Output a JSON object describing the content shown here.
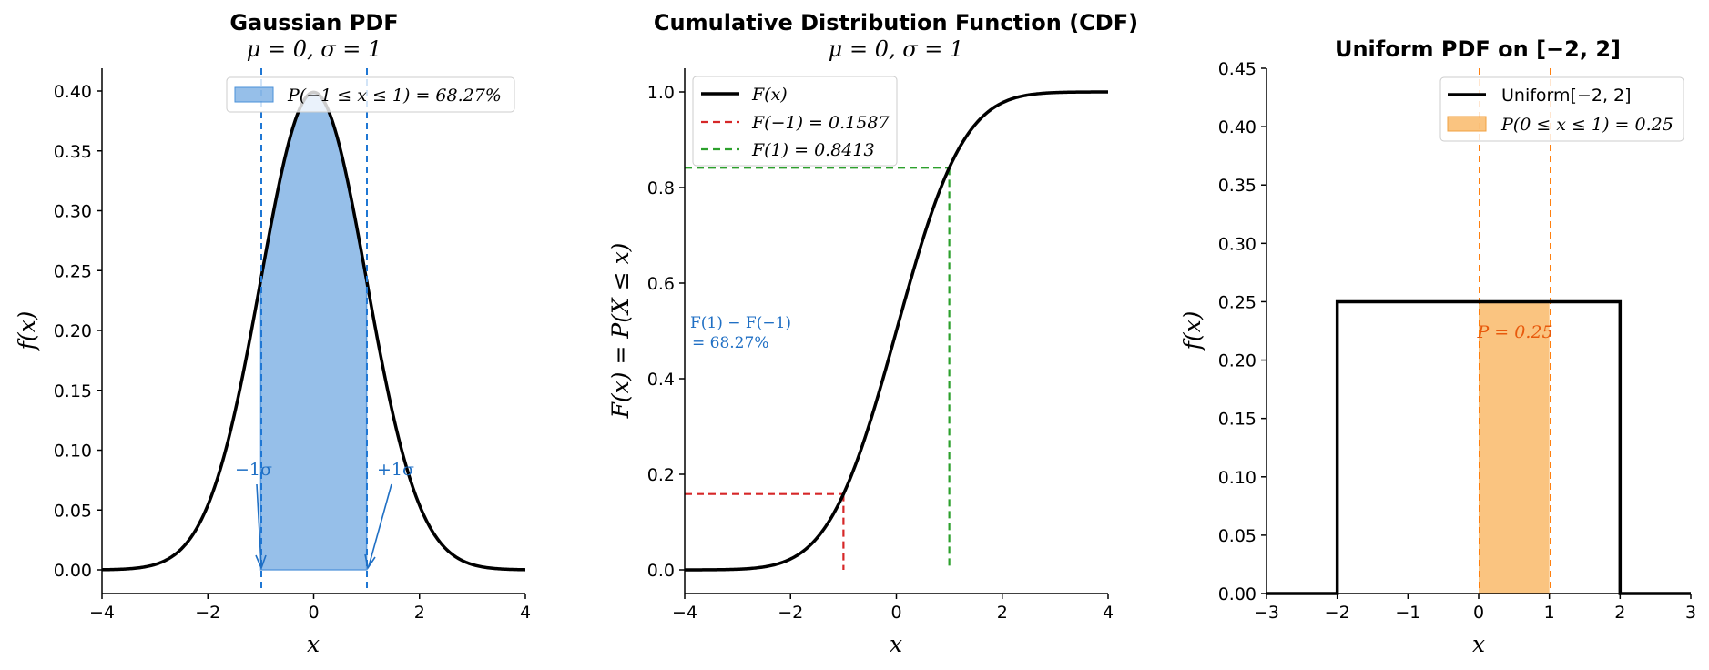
{
  "chart_data": [
    {
      "type": "area",
      "title": "Gaussian PDF",
      "subtitle": "μ = 0,  σ = 1",
      "xlabel": "x",
      "ylabel": "f(x)",
      "xlim": [
        -4,
        4
      ],
      "ylim": [
        -0.02,
        0.42
      ],
      "xticks": [
        "−4",
        "−2",
        "0",
        "2",
        "4"
      ],
      "yticks": [
        "0.00",
        "0.05",
        "0.10",
        "0.15",
        "0.20",
        "0.25",
        "0.30",
        "0.35",
        "0.40"
      ],
      "series": [
        {
          "name": "",
          "mu": 0,
          "sigma": 1,
          "color": "#000000"
        }
      ],
      "shaded_region": {
        "from": -1,
        "to": 1,
        "color": "#4a90d9",
        "label": "P(−1 ≤ x ≤ 1) = 68.27%"
      },
      "vlines": [
        {
          "x": -1,
          "color": "#1f77d4",
          "style": "dashed"
        },
        {
          "x": 1,
          "color": "#1f77d4",
          "style": "dashed"
        }
      ],
      "annotations": [
        {
          "text": "−1σ",
          "points_to": [
            -1,
            0
          ],
          "text_at": [
            -1.1,
            0.08
          ],
          "color": "#1f6fc4"
        },
        {
          "text": "+1σ",
          "points_to": [
            1,
            0
          ],
          "text_at": [
            1.6,
            0.08
          ],
          "color": "#1f6fc4"
        }
      ],
      "legend": {
        "placement": "top-right"
      },
      "grid": false
    },
    {
      "type": "line",
      "title": "Cumulative Distribution Function (CDF)",
      "subtitle": "μ = 0,  σ = 1",
      "xlabel": "x",
      "ylabel": "F(x) = P(X ≤ x)",
      "xlim": [
        -4,
        4
      ],
      "ylim": [
        -0.05,
        1.05
      ],
      "xticks": [
        "−4",
        "−2",
        "0",
        "2",
        "4"
      ],
      "yticks": [
        "0.0",
        "0.2",
        "0.4",
        "0.6",
        "0.8",
        "1.0"
      ],
      "series": [
        {
          "name": "F(x)",
          "color": "#000000",
          "style": "solid"
        },
        {
          "name": "F(−1) = 0.1587",
          "x": -1,
          "y": 0.1587,
          "color": "#d62728",
          "style": "dashed"
        },
        {
          "name": "F(1) = 0.8413",
          "x": 1,
          "y": 0.8413,
          "color": "#2ca02c",
          "style": "dashed"
        }
      ],
      "annotations": [
        {
          "line1": "F(1) − F(−1)",
          "line2": "= 68.27%",
          "color": "#1f6fc4"
        }
      ],
      "legend": {
        "placement": "top-left"
      },
      "grid": false
    },
    {
      "type": "area",
      "title": "Uniform PDF on [−2, 2]",
      "xlabel": "x",
      "ylabel": "f(x)",
      "xlim": [
        -3,
        3
      ],
      "ylim": [
        0,
        0.45
      ],
      "xticks": [
        "−3",
        "−2",
        "−1",
        "0",
        "1",
        "2",
        "3"
      ],
      "yticks": [
        "0.00",
        "0.05",
        "0.10",
        "0.15",
        "0.20",
        "0.25",
        "0.30",
        "0.35",
        "0.40",
        "0.45"
      ],
      "series": [
        {
          "name": "Uniform[−2, 2]",
          "a": -2,
          "b": 2,
          "density": 0.25,
          "color": "#000000"
        }
      ],
      "shaded_region": {
        "from": 0,
        "to": 1,
        "color": "#f8b45c",
        "label": "P(0 ≤ x ≤ 1) = 0.25"
      },
      "vlines": [
        {
          "x": 0,
          "color": "#ff7f0e",
          "style": "dashed"
        },
        {
          "x": 1,
          "color": "#ff7f0e",
          "style": "dashed"
        }
      ],
      "annotations": [
        {
          "text": "P = 0.25",
          "at": [
            0.5,
            0.22
          ],
          "color": "#e8590c"
        }
      ],
      "legend": {
        "placement": "top-right"
      },
      "grid": false
    }
  ]
}
